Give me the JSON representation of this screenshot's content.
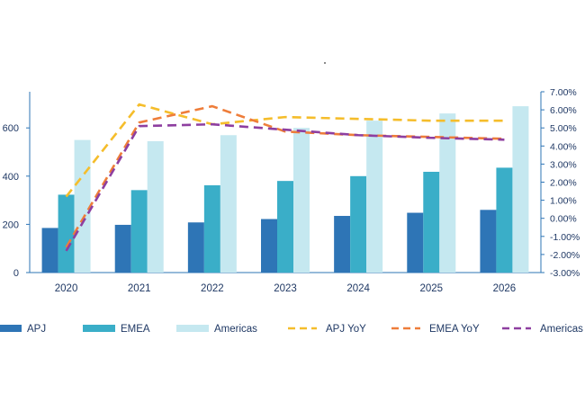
{
  "chart_data": {
    "type": "bar",
    "title": "",
    "xlabel": "",
    "ylabel": "",
    "categories": [
      "2020",
      "2021",
      "2022",
      "2023",
      "2024",
      "2025",
      "2026"
    ],
    "ylim": [
      0,
      750
    ],
    "y_ticks": [
      0,
      200,
      400,
      600
    ],
    "y2lim": [
      -3,
      7
    ],
    "y2_ticks": [
      "-3.00%",
      "-2.00%",
      "-1.00%",
      "0.00%",
      "1.00%",
      "2.00%",
      "3.00%",
      "4.00%",
      "5.00%",
      "6.00%",
      "7.00%"
    ],
    "y2_tick_values": [
      -3,
      -2,
      -1,
      0,
      1,
      2,
      3,
      4,
      5,
      6,
      7
    ],
    "grid": false,
    "legend_position": "bottom",
    "bar_series": [
      {
        "name": "APJ",
        "color": "#2e75b6",
        "values": [
          185,
          198,
          208,
          222,
          235,
          248,
          260
        ]
      },
      {
        "name": "EMEA",
        "color": "#3aaec8",
        "values": [
          323,
          342,
          362,
          380,
          400,
          418,
          435
        ]
      },
      {
        "name": "Americas",
        "color": "#c5e8f0",
        "values": [
          550,
          545,
          570,
          600,
          630,
          660,
          690
        ]
      }
    ],
    "line_series": [
      {
        "name": "APJ YoY",
        "color": "#f5bd2b",
        "values": [
          1.2,
          6.3,
          5.2,
          5.6,
          5.5,
          5.4,
          5.4
        ]
      },
      {
        "name": "EMEA YoY",
        "color": "#ee7d3a",
        "values": [
          -1.6,
          5.3,
          6.2,
          4.8,
          4.6,
          4.5,
          4.4
        ]
      },
      {
        "name": "Americas YoY",
        "color": "#8e3fa0",
        "values": [
          -1.8,
          5.1,
          5.2,
          4.9,
          4.6,
          4.45,
          4.35
        ]
      }
    ],
    "axis_color": "#2e75b6",
    "label_color": "#1f3864"
  }
}
